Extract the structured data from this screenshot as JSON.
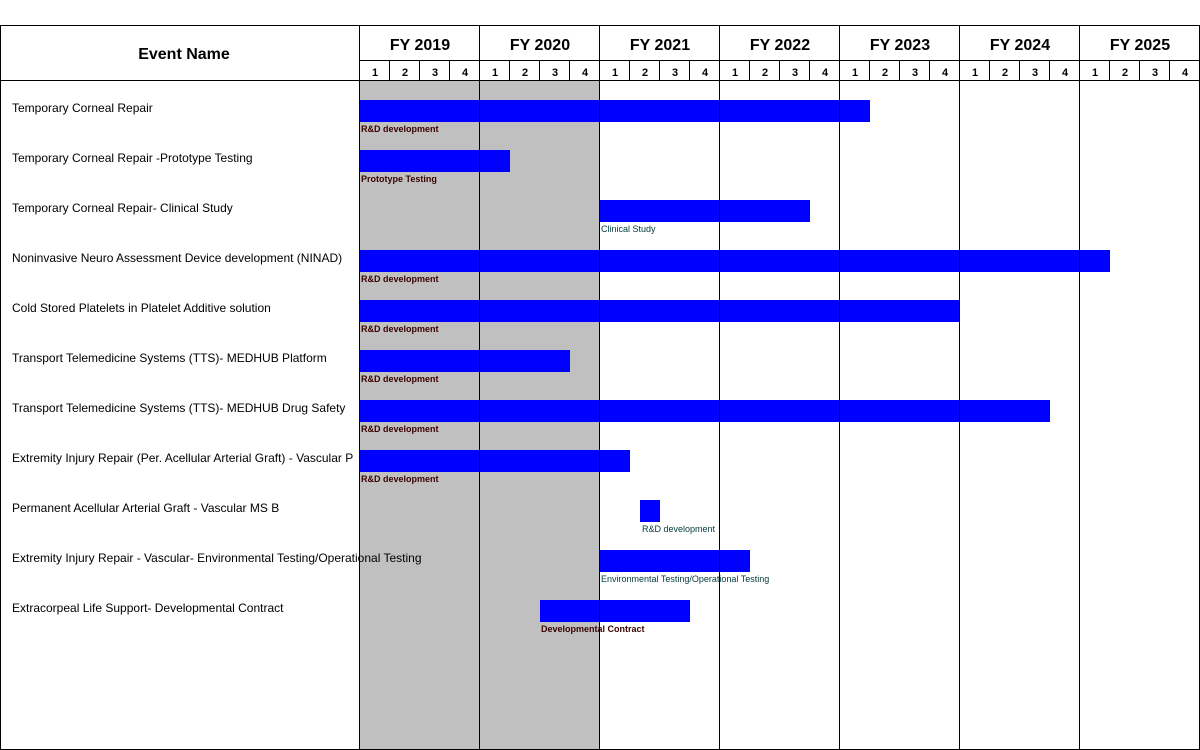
{
  "chart_data": {
    "type": "gantt",
    "header": "Event Name",
    "fiscal_years": [
      "FY 2019",
      "FY 2020",
      "FY 2021",
      "FY 2022",
      "FY 2023",
      "FY 2024",
      "FY 2025"
    ],
    "quarters": [
      "1",
      "2",
      "3",
      "4"
    ],
    "highlighted_years": [
      "FY 2019",
      "FY 2020"
    ],
    "colors": {
      "bar": "#0000ff",
      "highlight": "#c0c0c0",
      "grid": "#000000"
    },
    "events": [
      {
        "name": "Temporary Corneal Repair",
        "bar_label": "R&D development",
        "start": "FY 2019 Q1",
        "end": "FY 2023 Q1"
      },
      {
        "name": "Temporary Corneal Repair -Prototype Testing",
        "bar_label": "Prototype Testing",
        "start": "FY 2019 Q1",
        "end": "FY 2020 Q1"
      },
      {
        "name": "Temporary Corneal Repair- Clinical Study",
        "bar_label": "Clinical Study",
        "start": "FY 2021 Q1",
        "end": "FY 2022 Q3"
      },
      {
        "name": "Noninvasive Neuro Assessment Device development (NINAD)",
        "bar_label": "R&D development",
        "start": "FY 2019 Q1",
        "end": "FY 2025 Q1"
      },
      {
        "name": "Cold Stored Platelets in Platelet Additive solution",
        "bar_label": "R&D development",
        "start": "FY 2019 Q1",
        "end": "FY 2023 Q4"
      },
      {
        "name": "Transport Telemedicine Systems (TTS)- MEDHUB Platform",
        "bar_label": "R&D development",
        "start": "FY 2019 Q1",
        "end": "FY 2020 Q3"
      },
      {
        "name": "Transport Telemedicine Systems (TTS)-  MEDHUB Drug Safety",
        "bar_label": "R&D development",
        "start": "FY 2019 Q1",
        "end": "FY 2024 Q3"
      },
      {
        "name": "Extremity Injury Repair (Per. Acellular Arterial Graft) - Vascular P",
        "bar_label": "R&D development",
        "start": "FY 2019 Q1",
        "end": "FY 2021 Q1"
      },
      {
        "name": "Permanent Acellular Arterial Graft  - Vascular MS B",
        "bar_label": "R&D development",
        "start": "FY 2021 Q2",
        "end": "FY 2021 Q2"
      },
      {
        "name": "Extremity Injury Repair - Vascular-  Environmental Testing/Operational Testing",
        "bar_label": "Environmental Testing/Operational Testing",
        "start": "FY 2021 Q1",
        "end": "FY 2022 Q1"
      },
      {
        "name": "Extracorpeal Life Support- Developmental Contract",
        "bar_label": "Developmental Contract",
        "start": "FY 2020 Q3",
        "end": "FY 2021 Q3"
      }
    ]
  }
}
